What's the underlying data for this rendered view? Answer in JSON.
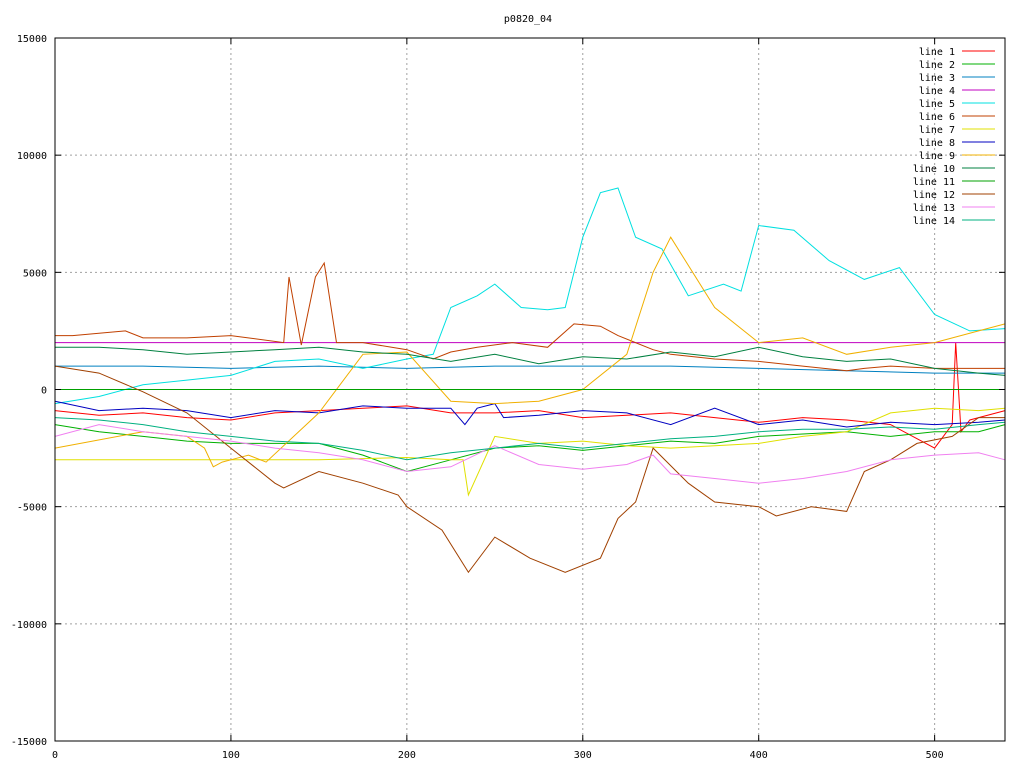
{
  "chart_data": {
    "type": "line",
    "title": "p0820_04",
    "xlabel": "",
    "ylabel": "",
    "xlim": [
      0,
      540
    ],
    "ylim": [
      -15000,
      15000
    ],
    "xticks": [
      0,
      100,
      200,
      300,
      400,
      500
    ],
    "yticks": [
      -15000,
      -10000,
      -5000,
      0,
      5000,
      10000,
      15000
    ],
    "grid": true,
    "legend_position": "top-right",
    "series": [
      {
        "name": "line 1",
        "color": "#ff0000",
        "x": [
          0,
          25,
          50,
          75,
          100,
          125,
          150,
          175,
          200,
          225,
          250,
          275,
          300,
          325,
          350,
          375,
          400,
          425,
          450,
          475,
          500,
          510,
          512,
          515,
          520,
          540
        ],
        "y": [
          -900,
          -1100,
          -1000,
          -1200,
          -1300,
          -1000,
          -900,
          -800,
          -700,
          -1000,
          -1000,
          -900,
          -1200,
          -1100,
          -1000,
          -1200,
          -1400,
          -1200,
          -1300,
          -1500,
          -2500,
          -1500,
          2000,
          -1800,
          -1300,
          -900
        ]
      },
      {
        "name": "line 2",
        "color": "#00b000",
        "x": [
          0,
          25,
          50,
          75,
          100,
          125,
          150,
          175,
          200,
          225,
          250,
          275,
          300,
          325,
          350,
          375,
          400,
          425,
          450,
          475,
          500,
          525,
          540
        ],
        "y": [
          -1500,
          -1800,
          -2000,
          -2200,
          -2300,
          -2300,
          -2300,
          -2800,
          -3500,
          -3000,
          -2500,
          -2400,
          -2600,
          -2400,
          -2200,
          -2300,
          -2000,
          -1900,
          -1800,
          -2000,
          -1800,
          -1800,
          -1500
        ]
      },
      {
        "name": "line 3",
        "color": "#0080c0",
        "x": [
          0,
          50,
          100,
          150,
          200,
          250,
          300,
          350,
          400,
          450,
          500,
          540
        ],
        "y": [
          1000,
          1000,
          900,
          1000,
          900,
          1000,
          1000,
          1000,
          900,
          800,
          700,
          700
        ]
      },
      {
        "name": "line 4",
        "color": "#c000c0",
        "x": [
          0,
          50,
          100,
          150,
          200,
          250,
          300,
          350,
          400,
          450,
          500,
          540
        ],
        "y": [
          2000,
          2000,
          2000,
          2000,
          2000,
          2000,
          2000,
          2000,
          2000,
          2000,
          2000,
          2000
        ]
      },
      {
        "name": "line 5",
        "color": "#00e0e0",
        "x": [
          0,
          25,
          50,
          75,
          100,
          125,
          150,
          175,
          200,
          215,
          225,
          240,
          250,
          265,
          280,
          290,
          300,
          310,
          320,
          330,
          345,
          360,
          380,
          390,
          400,
          420,
          440,
          460,
          480,
          500,
          520,
          540
        ],
        "y": [
          -600,
          -300,
          200,
          400,
          600,
          1200,
          1300,
          900,
          1300,
          1500,
          3500,
          4000,
          4500,
          3500,
          3400,
          3500,
          6500,
          8400,
          8600,
          6500,
          6000,
          4000,
          4500,
          4200,
          7000,
          6800,
          5500,
          4700,
          5200,
          3200,
          2500,
          2600
        ]
      },
      {
        "name": "line 6",
        "color": "#c04000",
        "x": [
          0,
          10,
          25,
          40,
          50,
          75,
          100,
          130,
          133,
          140,
          148,
          153,
          160,
          175,
          200,
          215,
          225,
          240,
          260,
          280,
          295,
          310,
          320,
          340,
          350,
          375,
          400,
          425,
          450,
          460,
          475,
          500,
          540
        ],
        "y": [
          2300,
          2300,
          2400,
          2500,
          2200,
          2200,
          2300,
          2000,
          4800,
          1900,
          4800,
          5400,
          2000,
          2000,
          1700,
          1300,
          1600,
          1800,
          2000,
          1800,
          2800,
          2700,
          2300,
          1700,
          1500,
          1300,
          1200,
          1000,
          800,
          900,
          1000,
          900,
          900
        ]
      },
      {
        "name": "line 7",
        "color": "#e0e000",
        "x": [
          0,
          50,
          100,
          150,
          200,
          225,
          232,
          235,
          250,
          275,
          300,
          325,
          350,
          375,
          400,
          425,
          450,
          475,
          500,
          525,
          540
        ],
        "y": [
          -3000,
          -3000,
          -3000,
          -3000,
          -2900,
          -3000,
          -3000,
          -4500,
          -2000,
          -2300,
          -2200,
          -2400,
          -2500,
          -2400,
          -2300,
          -2000,
          -1800,
          -1000,
          -800,
          -900,
          -800
        ]
      },
      {
        "name": "line 8",
        "color": "#0000c0",
        "x": [
          0,
          25,
          50,
          75,
          100,
          125,
          150,
          175,
          200,
          225,
          233,
          240,
          250,
          255,
          275,
          300,
          325,
          350,
          375,
          400,
          425,
          450,
          475,
          500,
          525,
          540
        ],
        "y": [
          -500,
          -900,
          -800,
          -900,
          -1200,
          -900,
          -1000,
          -700,
          -800,
          -800,
          -1500,
          -800,
          -600,
          -1200,
          -1100,
          -900,
          -1000,
          -1500,
          -800,
          -1500,
          -1300,
          -1600,
          -1400,
          -1500,
          -1400,
          -1300
        ]
      },
      {
        "name": "line 9",
        "color": "#f0b000",
        "x": [
          0,
          50,
          75,
          85,
          90,
          95,
          100,
          110,
          120,
          150,
          175,
          200,
          225,
          250,
          275,
          300,
          325,
          340,
          350,
          375,
          400,
          425,
          450,
          475,
          500,
          525,
          540
        ],
        "y": [
          -2500,
          -1800,
          -2000,
          -2500,
          -3300,
          -3100,
          -3000,
          -2800,
          -3100,
          -1000,
          1500,
          1600,
          -500,
          -600,
          -500,
          0,
          1500,
          5000,
          6500,
          3500,
          2000,
          2200,
          1500,
          1800,
          2000,
          2500,
          2800
        ]
      },
      {
        "name": "line 10",
        "color": "#008040",
        "x": [
          0,
          25,
          50,
          75,
          100,
          125,
          150,
          175,
          200,
          225,
          250,
          275,
          300,
          325,
          350,
          375,
          400,
          425,
          450,
          475,
          500,
          525,
          540
        ],
        "y": [
          1800,
          1800,
          1700,
          1500,
          1600,
          1700,
          1800,
          1600,
          1500,
          1200,
          1500,
          1100,
          1400,
          1300,
          1600,
          1400,
          1800,
          1400,
          1200,
          1300,
          900,
          700,
          600
        ]
      },
      {
        "name": "line 11",
        "color": "#00a000",
        "x": [
          0,
          50,
          100,
          150,
          200,
          250,
          300,
          350,
          400,
          450,
          500,
          540
        ],
        "y": [
          0,
          0,
          0,
          0,
          0,
          0,
          0,
          0,
          0,
          0,
          0,
          0
        ]
      },
      {
        "name": "line 12",
        "color": "#a04000",
        "x": [
          0,
          25,
          50,
          75,
          100,
          125,
          130,
          150,
          175,
          195,
          200,
          220,
          235,
          250,
          270,
          290,
          310,
          320,
          330,
          340,
          360,
          375,
          400,
          410,
          430,
          450,
          460,
          475,
          490,
          510,
          525,
          540
        ],
        "y": [
          1000,
          700,
          -100,
          -1000,
          -2500,
          -4000,
          -4200,
          -3500,
          -4000,
          -4500,
          -5000,
          -6000,
          -7800,
          -6300,
          -7200,
          -7800,
          -7200,
          -5500,
          -4800,
          -2500,
          -4000,
          -4800,
          -5000,
          -5400,
          -5000,
          -5200,
          -3500,
          -3000,
          -2300,
          -2000,
          -1200,
          -1200
        ]
      },
      {
        "name": "line 13",
        "color": "#f080f0",
        "x": [
          0,
          25,
          50,
          75,
          100,
          125,
          150,
          175,
          200,
          225,
          250,
          275,
          300,
          325,
          340,
          350,
          375,
          400,
          425,
          450,
          475,
          500,
          525,
          540
        ],
        "y": [
          -2000,
          -1500,
          -1800,
          -2000,
          -2200,
          -2500,
          -2700,
          -3000,
          -3500,
          -3300,
          -2400,
          -3200,
          -3400,
          -3200,
          -2800,
          -3600,
          -3800,
          -4000,
          -3800,
          -3500,
          -3000,
          -2800,
          -2700,
          -3000
        ]
      },
      {
        "name": "line 14",
        "color": "#00b080",
        "x": [
          0,
          25,
          50,
          75,
          100,
          125,
          150,
          175,
          200,
          225,
          250,
          275,
          300,
          325,
          350,
          375,
          400,
          425,
          450,
          475,
          500,
          525,
          540
        ],
        "y": [
          -1200,
          -1300,
          -1500,
          -1800,
          -2000,
          -2200,
          -2300,
          -2600,
          -3000,
          -2700,
          -2500,
          -2300,
          -2500,
          -2300,
          -2100,
          -2000,
          -1800,
          -1700,
          -1700,
          -1600,
          -1700,
          -1500,
          -1400
        ]
      }
    ]
  }
}
